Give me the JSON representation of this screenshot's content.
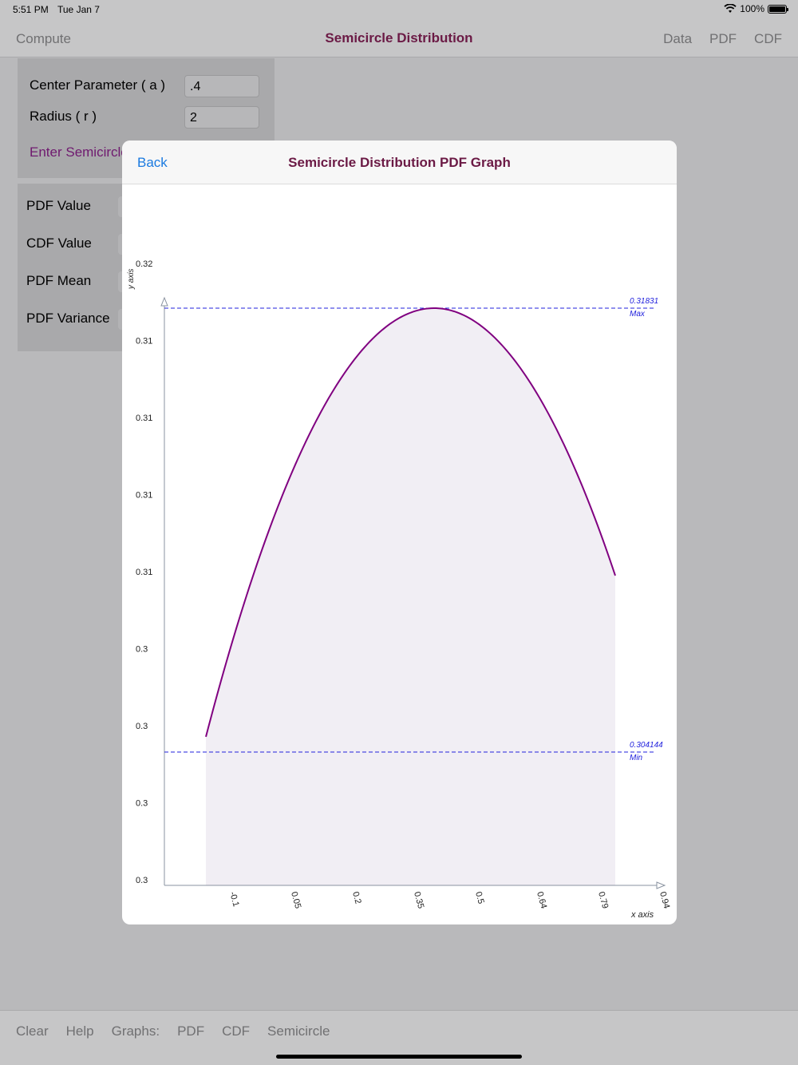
{
  "status": {
    "time": "5:51 PM",
    "date": "Tue Jan 7",
    "battery": "100%"
  },
  "nav": {
    "left": "Compute",
    "title": "Semicircle Distribution",
    "right": [
      "Data",
      "PDF",
      "CDF"
    ]
  },
  "inputs": {
    "center_label": "Center Parameter ( a  )",
    "center_value": ".4",
    "radius_label": "Radius ( r )",
    "radius_value": "2",
    "enter_link": "Enter Semicircle"
  },
  "results": {
    "pdf_value": "PDF Value",
    "cdf_value": "CDF Value",
    "pdf_mean": "PDF Mean",
    "pdf_variance": "PDF Variance"
  },
  "toolbar": {
    "items": [
      "Clear",
      "Help",
      "Graphs:",
      "PDF",
      "CDF",
      "Semicircle"
    ]
  },
  "modal": {
    "back": "Back",
    "title": "Semicircle Distribution PDF Graph"
  },
  "chart_data": {
    "type": "area",
    "a": 0.4,
    "r": 2,
    "x_range": [
      -0.18,
      0.86
    ],
    "ylim": [
      0.3,
      0.32
    ],
    "x_tick_labels": [
      "-0.1",
      "0.05",
      "0.2",
      "0.35",
      "0.5",
      "0.64",
      "0.79",
      "0.94"
    ],
    "x_tick_values": [
      -0.1,
      0.05,
      0.2,
      0.35,
      0.5,
      0.64,
      0.79,
      0.94
    ],
    "y_tick_labels": [
      "0.32",
      "0.31",
      "0.31",
      "0.31",
      "0.31",
      "0.3",
      "0.3",
      "0.3",
      "0.3"
    ],
    "xlabel": "x axis",
    "ylabel": "y axis",
    "max_value": "0.31831",
    "max_label": "Max",
    "min_value": "0.304144",
    "min_label": "Min",
    "line_color": "#800080",
    "fill_color": "#f1eef4",
    "ref_line_color": "#2222dd"
  }
}
